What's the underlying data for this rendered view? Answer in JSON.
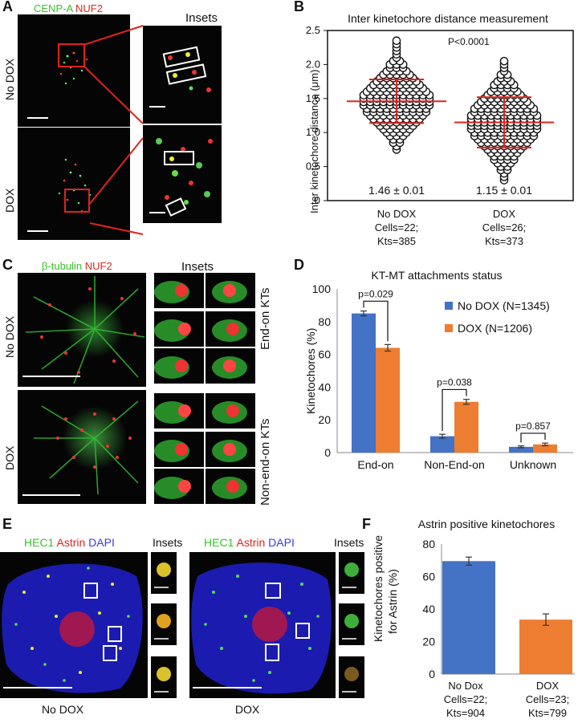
{
  "panelA": {
    "letter": "A",
    "ch1": "CENP-A",
    "ch2": "NUF2",
    "insets_title": "Insets",
    "row1": "No DOX",
    "row2": "DOX"
  },
  "panelB": {
    "letter": "B",
    "title": "Inter kinetochore distance measurement",
    "ylabel": "Inter kinetochore distance (μm)",
    "yticks": [
      "0",
      "0.5",
      "1.0",
      "1.5",
      "2.0",
      "2.5"
    ],
    "pvalue": "P<0.0001",
    "g1_value": "1.46 ± 0.01",
    "g2_value": "1.15 ± 0.01",
    "g1_caption": [
      "No DOX",
      "Cells=22;",
      "Kts=385"
    ],
    "g2_caption": [
      "DOX",
      "Cells=26;",
      "Kts=373"
    ]
  },
  "panelC": {
    "letter": "C",
    "ch1": "β-tubulin",
    "ch2": "NUF2",
    "insets_title": "Insets",
    "row1": "No DOX",
    "row2": "DOX",
    "side1": "End-on KTs",
    "side2": "Non-end-on KTs"
  },
  "panelD": {
    "letter": "D",
    "title": "KT-MT attachments status",
    "ylabel": "Kinetochores (%)",
    "yticks": [
      "0",
      "20",
      "40",
      "60",
      "80",
      "100"
    ],
    "legend": [
      "No DOX (N=1345)",
      "DOX (N=1206)"
    ],
    "pvals": [
      "p=0.029",
      "p=0.038",
      "p=0.857"
    ]
  },
  "panelE": {
    "letter": "E",
    "ch1": "HEC1",
    "ch2": "Astrin",
    "ch3": "DAPI",
    "insets_title": "Insets",
    "cap1": "No DOX",
    "cap2": "DOX"
  },
  "panelF": {
    "letter": "F",
    "title": "Astrin positive kinetochores",
    "ylabel1": "Kinetochores positive",
    "ylabel2": "for  Astrin (%)",
    "yticks": [
      "0",
      "20",
      "40",
      "60",
      "80"
    ],
    "cap1": [
      "No Dox",
      "Cells=22;",
      "Kts=904"
    ],
    "cap2": [
      "DOX",
      "Cells=23;",
      "Kts=799"
    ]
  },
  "colors": {
    "blue": "#4472c4",
    "orange": "#ed7d31",
    "green": "#39c22a",
    "red": "#e0231c",
    "dapi": "#3a3ae0"
  },
  "chart_data": [
    {
      "panel": "B",
      "type": "scatter",
      "title": "Inter kinetochore distance measurement",
      "ylabel": "Inter kinetochore distance (μm)",
      "ylim": [
        0,
        2.5
      ],
      "categories": [
        "No DOX",
        "DOX"
      ],
      "mean": [
        1.46,
        1.15
      ],
      "sem": [
        0.01,
        0.01
      ],
      "sd_approx": [
        0.32,
        0.37
      ],
      "range_approx": [
        [
          0.75,
          2.35
        ],
        [
          0.3,
          2.05
        ]
      ],
      "n": [
        385,
        373
      ]
    },
    {
      "panel": "D",
      "type": "bar",
      "title": "KT-MT attachments status",
      "ylabel": "Kinetochores (%)",
      "ylim": [
        0,
        100
      ],
      "categories": [
        "End-on",
        "Non-End-on",
        "Unknown"
      ],
      "series": [
        {
          "name": "No DOX (N=1345)",
          "values": [
            85,
            10,
            3.5
          ],
          "errors": [
            1.5,
            1.2,
            0.6
          ]
        },
        {
          "name": "DOX (N=1206)",
          "values": [
            64,
            31,
            5
          ],
          "errors": [
            2,
            1.5,
            0.8
          ]
        }
      ]
    },
    {
      "panel": "F",
      "type": "bar",
      "title": "Astrin positive kinetochores",
      "ylabel": "Kinetochores positive for  Astrin (%)",
      "ylim": [
        0,
        80
      ],
      "categories": [
        "No Dox",
        "DOX"
      ],
      "values": [
        69.5,
        33.5
      ],
      "errors": [
        2.5,
        3.5
      ]
    }
  ]
}
